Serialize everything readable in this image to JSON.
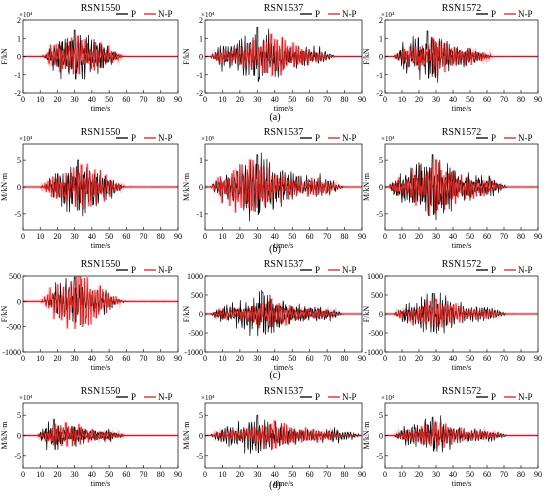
{
  "colors": {
    "P": "#000000",
    "N-P": "#e0201b",
    "N-P_band": "#f6b9c6"
  },
  "legend_entries": [
    "P",
    "N-P"
  ],
  "xlabel": "time/s",
  "xticks": [
    "0",
    "10",
    "20",
    "30",
    "40",
    "50",
    "60",
    "70",
    "80",
    "90"
  ],
  "row_captions": [
    "(a)",
    "(b)",
    "(c)",
    "(d)"
  ],
  "column_titles": [
    "RSN1550",
    "RSN1537",
    "RSN1572"
  ],
  "chart_data": [
    {
      "row": "(a)",
      "type": "line",
      "ylabel": "F/kN",
      "multiplier": "×10⁴",
      "yticks": [
        "2",
        "1",
        "0",
        "-1",
        "-2"
      ],
      "ylim": [
        -2,
        2
      ],
      "xlim": [
        0,
        90
      ],
      "panels": [
        {
          "title": "RSN1550",
          "series": [
            {
              "name": "P",
              "active": [
                12,
                58
              ],
              "peak": 1.45,
              "peak_t": 30
            },
            {
              "name": "N-P",
              "active": [
                10,
                60
              ],
              "peak": 1.1,
              "peak_t": 32
            }
          ]
        },
        {
          "title": "RSN1537",
          "series": [
            {
              "name": "P",
              "active": [
                3,
                75
              ],
              "peak": 1.6,
              "peak_t": 30
            },
            {
              "name": "N-P",
              "active": [
                3,
                72
              ],
              "peak": 1.2,
              "peak_t": 38
            }
          ]
        },
        {
          "title": "RSN1572",
          "series": [
            {
              "name": "P",
              "active": [
                5,
                62
              ],
              "peak": 1.4,
              "peak_t": 25
            },
            {
              "name": "N-P",
              "active": [
                5,
                65
              ],
              "peak": 1.0,
              "peak_t": 28
            }
          ]
        }
      ]
    },
    {
      "row": "(b)",
      "type": "line",
      "ylabel": "M/kN·m",
      "multiplier_per_panel": [
        "×10⁴",
        "×10⁵",
        "×10⁴"
      ],
      "yticks_per_panel": [
        [
          "5",
          "0",
          "-5"
        ],
        [
          "1",
          "0",
          "-1"
        ],
        [
          "5",
          "0",
          "-5"
        ]
      ],
      "ylim_per_panel": [
        [
          -8,
          8
        ],
        [
          -1.6,
          1.6
        ],
        [
          -8,
          8
        ]
      ],
      "xlim": [
        0,
        90
      ],
      "panels": [
        {
          "title": "RSN1550",
          "series": [
            {
              "name": "P",
              "active": [
                12,
                60
              ],
              "peak": 5.0,
              "peak_t": 32
            },
            {
              "name": "N-P",
              "active": [
                10,
                60
              ],
              "peak": 4.0,
              "peak_t": 34
            }
          ]
        },
        {
          "title": "RSN1537",
          "series": [
            {
              "name": "P",
              "active": [
                3,
                80
              ],
              "peak": 1.2,
              "peak_t": 30
            },
            {
              "name": "N-P",
              "active": [
                3,
                78
              ],
              "peak": 1.0,
              "peak_t": 26
            }
          ]
        },
        {
          "title": "RSN1572",
          "series": [
            {
              "name": "P",
              "active": [
                2,
                72
              ],
              "peak": 6.0,
              "peak_t": 28
            },
            {
              "name": "N-P",
              "active": [
                2,
                70
              ],
              "peak": 5.0,
              "peak_t": 30
            }
          ]
        }
      ]
    },
    {
      "row": "(c)",
      "type": "line",
      "ylabel": "F/kN",
      "yticks_per_panel": [
        [
          "500",
          "0",
          "-500",
          "-1000"
        ],
        [
          "1000",
          "500",
          "0",
          "-500",
          "-1000"
        ],
        [
          "1000",
          "500",
          "0",
          "-500",
          "-1000"
        ]
      ],
      "ylim_per_panel": [
        [
          -1000,
          500
        ],
        [
          -1000,
          1000
        ],
        [
          -1000,
          1000
        ]
      ],
      "xlim": [
        0,
        90
      ],
      "panels": [
        {
          "title": "RSN1550",
          "series": [
            {
              "name": "P",
              "active": [
                12,
                60
              ],
              "peak": 480,
              "peak_t": 30
            },
            {
              "name": "N-P",
              "active": [
                10,
                58
              ],
              "peak": 520,
              "peak_t": 33
            }
          ]
        },
        {
          "title": "RSN1537",
          "series": [
            {
              "name": "P",
              "active": [
                3,
                80
              ],
              "peak": 560,
              "peak_t": 33
            },
            {
              "name": "N-P",
              "active": [
                3,
                78
              ],
              "peak": 380,
              "peak_t": 38
            }
          ]
        },
        {
          "title": "RSN1572",
          "series": [
            {
              "name": "P",
              "active": [
                5,
                72
              ],
              "peak": 540,
              "peak_t": 28
            },
            {
              "name": "N-P",
              "active": [
                5,
                70
              ],
              "peak": 380,
              "peak_t": 30
            }
          ]
        }
      ]
    },
    {
      "row": "(d)",
      "type": "line",
      "ylabel": "M/kN·m",
      "multiplier": "×10⁴",
      "yticks_per_panel": [
        [
          "5",
          "0",
          "-5"
        ],
        [
          "5",
          "0",
          "-5"
        ],
        [
          "5",
          "0",
          "-5"
        ]
      ],
      "ylim_per_panel": [
        [
          -8,
          8
        ],
        [
          -8,
          8
        ],
        [
          -8,
          8
        ]
      ],
      "xlim": [
        0,
        90
      ],
      "panels": [
        {
          "title": "RSN1550",
          "series": [
            {
              "name": "P",
              "active": [
                8,
                60
              ],
              "peak": 4.0,
              "peak_t": 18
            },
            {
              "name": "N-P",
              "active": [
                8,
                60
              ],
              "peak": 3.0,
              "peak_t": 25
            }
          ]
        },
        {
          "title": "RSN1537",
          "series": [
            {
              "name": "P",
              "active": [
                3,
                90
              ],
              "peak": 5.0,
              "peak_t": 30
            },
            {
              "name": "N-P",
              "active": [
                3,
                80
              ],
              "peak": 3.5,
              "peak_t": 40
            }
          ]
        },
        {
          "title": "RSN1572",
          "series": [
            {
              "name": "P",
              "active": [
                5,
                72
              ],
              "peak": 4.5,
              "peak_t": 28
            },
            {
              "name": "N-P",
              "active": [
                5,
                70
              ],
              "peak": 3.0,
              "peak_t": 30
            }
          ]
        }
      ]
    }
  ]
}
